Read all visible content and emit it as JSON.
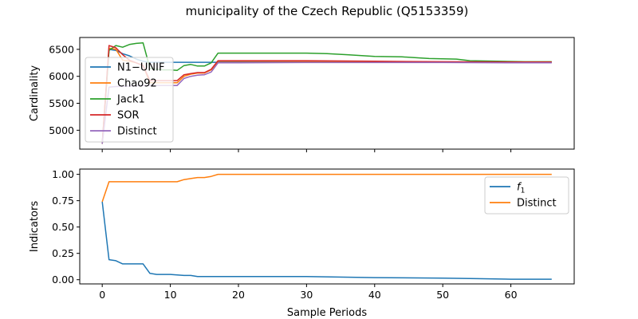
{
  "figure": {
    "title": "municipality of the Czech Republic (Q5153359)"
  },
  "chart_data": [
    {
      "type": "line",
      "ylabel": "Cardinality",
      "xlabel": "",
      "xlim": [
        -3.3,
        69.3
      ],
      "ylim": [
        4650,
        6720
      ],
      "xticks": [
        0,
        10,
        20,
        30,
        40,
        50,
        60
      ],
      "yticks": [
        5000,
        5500,
        6000,
        6500
      ],
      "legend_position": "upper-left",
      "series": [
        {
          "name": "N1−UNIF",
          "color": "#1f77b4",
          "x": [
            0,
            1,
            2,
            3,
            4,
            5,
            6,
            7,
            66
          ],
          "y": [
            4750,
            6500,
            6480,
            6420,
            6380,
            6320,
            6280,
            6260,
            6260
          ]
        },
        {
          "name": "Chao92",
          "color": "#ff7f0e",
          "x": [
            0,
            1,
            2,
            3,
            4,
            5,
            6,
            7,
            10,
            11,
            12,
            13,
            14,
            15,
            16,
            17,
            20,
            30,
            40,
            50,
            60,
            66
          ],
          "y": [
            4750,
            6520,
            6500,
            6300,
            6280,
            6250,
            6200,
            5880,
            5880,
            5880,
            6000,
            6040,
            6060,
            6060,
            6120,
            6280,
            6280,
            6280,
            6270,
            6260,
            6260,
            6260
          ]
        },
        {
          "name": "Jack1",
          "color": "#2ca02c",
          "x": [
            0,
            1,
            2,
            3,
            4,
            5,
            6,
            7,
            8,
            9,
            10,
            11,
            12,
            13,
            14,
            15,
            16,
            17,
            20,
            25,
            30,
            33,
            36,
            40,
            44,
            48,
            52,
            54,
            58,
            62,
            66
          ],
          "y": [
            4750,
            6480,
            6570,
            6540,
            6590,
            6610,
            6620,
            6150,
            6130,
            6120,
            6120,
            6110,
            6200,
            6220,
            6190,
            6190,
            6250,
            6430,
            6430,
            6430,
            6430,
            6420,
            6400,
            6370,
            6360,
            6330,
            6320,
            6290,
            6280,
            6270,
            6270
          ]
        },
        {
          "name": "SOR",
          "color": "#d62728",
          "x": [
            0,
            1,
            2,
            3,
            4,
            5,
            6,
            7,
            10,
            11,
            12,
            13,
            14,
            15,
            16,
            17,
            20,
            30,
            40,
            50,
            60,
            66
          ],
          "y": [
            4750,
            6570,
            6530,
            6400,
            6300,
            6250,
            6200,
            5920,
            5920,
            5920,
            6030,
            6050,
            6070,
            6070,
            6130,
            6290,
            6290,
            6290,
            6280,
            6270,
            6265,
            6265
          ]
        },
        {
          "name": "Distinct",
          "color": "#9467bd",
          "x": [
            0,
            1,
            2,
            3,
            4,
            5,
            6,
            7,
            10,
            11,
            12,
            13,
            14,
            15,
            16,
            17,
            20,
            30,
            40,
            50,
            60,
            66
          ],
          "y": [
            4750,
            5800,
            5810,
            5815,
            5820,
            5825,
            5830,
            5830,
            5830,
            5830,
            5960,
            6000,
            6020,
            6030,
            6080,
            6250,
            6250,
            6255,
            6255,
            6255,
            6250,
            6250
          ]
        }
      ]
    },
    {
      "type": "line",
      "ylabel": "Indicators",
      "xlabel": "Sample Periods",
      "xlim": [
        -3.3,
        69.3
      ],
      "ylim": [
        -0.04,
        1.05
      ],
      "xticks": [
        0,
        10,
        20,
        30,
        40,
        50,
        60
      ],
      "yticks": [
        0.0,
        0.25,
        0.5,
        0.75,
        1.0
      ],
      "ytick_labels": [
        "0.00",
        "0.25",
        "0.50",
        "0.75",
        "1.00"
      ],
      "legend_position": "upper-right",
      "series": [
        {
          "name": "f1",
          "color": "#1f77b4",
          "x": [
            0,
            1,
            2,
            3,
            4,
            5,
            6,
            7,
            8,
            9,
            10,
            11,
            12,
            13,
            14,
            20,
            30,
            40,
            50,
            55,
            60,
            66
          ],
          "y": [
            0.74,
            0.19,
            0.18,
            0.15,
            0.15,
            0.15,
            0.15,
            0.06,
            0.05,
            0.05,
            0.05,
            0.045,
            0.04,
            0.04,
            0.03,
            0.03,
            0.03,
            0.02,
            0.015,
            0.01,
            0.005,
            0.005
          ]
        },
        {
          "name": "Distinct",
          "color": "#ff7f0e",
          "x": [
            0,
            1,
            2,
            3,
            4,
            5,
            6,
            7,
            8,
            9,
            10,
            11,
            12,
            13,
            14,
            15,
            16,
            17,
            20,
            30,
            40,
            50,
            60,
            66
          ],
          "y": [
            0.74,
            0.93,
            0.93,
            0.93,
            0.93,
            0.93,
            0.93,
            0.93,
            0.93,
            0.93,
            0.93,
            0.93,
            0.95,
            0.96,
            0.97,
            0.97,
            0.98,
            1.0,
            1.0,
            1.0,
            1.0,
            1.0,
            1.0,
            1.0
          ]
        }
      ]
    }
  ]
}
